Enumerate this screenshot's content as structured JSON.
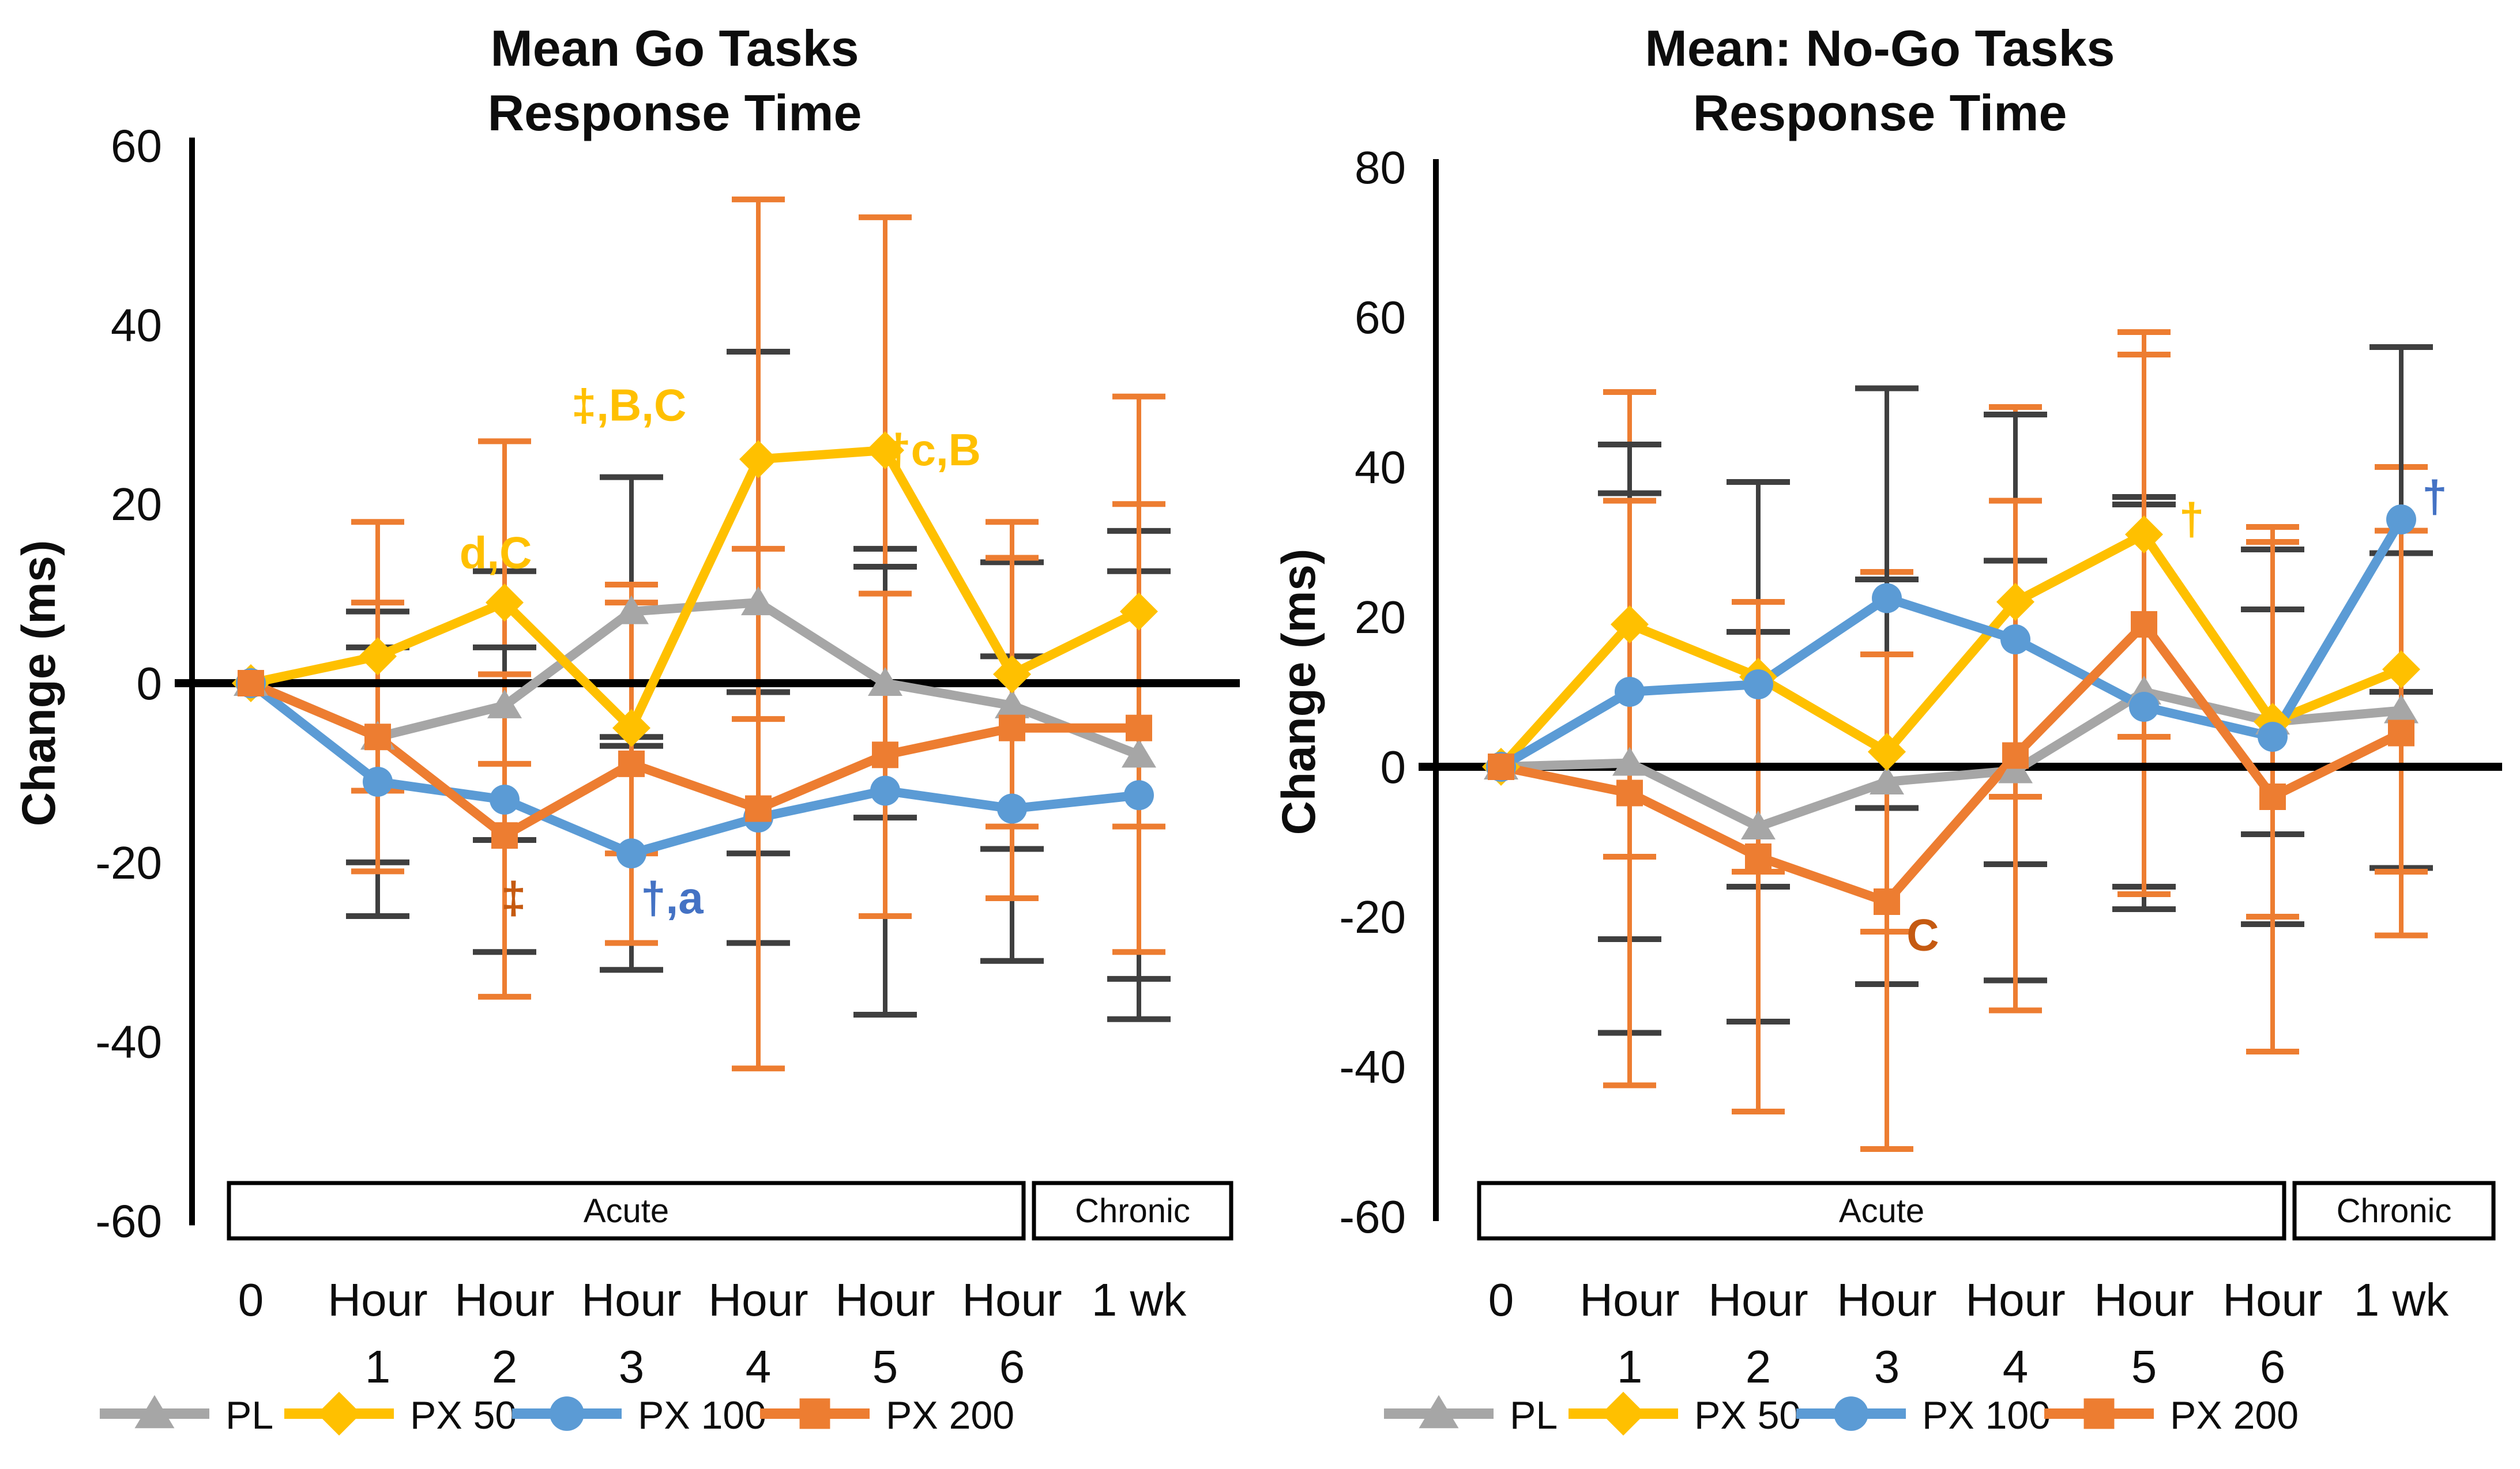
{
  "figure": {
    "left_title_line1": "Mean Go Tasks",
    "left_title_line2": "Response Time",
    "right_title_line1": "Mean: No-Go Tasks",
    "right_title_line2": "Response Time"
  },
  "chart_data": [
    {
      "type": "line",
      "title": "Mean Go Tasks Response Time",
      "title_lines": [
        "Mean Go Tasks",
        "Response Time"
      ],
      "ylabel": "Change (ms)",
      "ylim": [
        -60,
        60
      ],
      "ytick_step": 20,
      "grid": false,
      "legend_position": "bottom",
      "categories_line1": [
        "0",
        "Hour",
        "Hour",
        "Hour",
        "Hour",
        "Hour",
        "Hour",
        "1 wk"
      ],
      "categories_line2": [
        "",
        "1",
        "2",
        "3",
        "4",
        "5",
        "6",
        ""
      ],
      "series": [
        {
          "name": "PL",
          "marker": "triangle",
          "color": "#A6A6A6",
          "error_color": "#3F3F3F",
          "values": [
            0,
            -6,
            -2.5,
            8,
            9,
            0,
            -2.5,
            -8
          ],
          "errors": [
            0,
            14,
            15,
            15,
            28,
            15,
            16,
            25
          ]
        },
        {
          "name": "PX 50",
          "marker": "diamond",
          "color": "#FFC000",
          "error_color": "#ED7D31",
          "values": [
            0,
            3,
            9,
            -5,
            25,
            26,
            1,
            8
          ],
          "errors": [
            0,
            15,
            18,
            14,
            29,
            26,
            17,
            24
          ]
        },
        {
          "name": "PX 100",
          "marker": "circle",
          "color": "#5B9BD5",
          "error_color": "#3F3F3F",
          "values": [
            0,
            -11,
            -13,
            -19,
            -15,
            -12,
            -14,
            -12.5
          ],
          "errors": [
            0,
            15,
            17,
            13,
            14,
            25,
            17,
            25
          ]
        },
        {
          "name": "PX 200",
          "marker": "square",
          "color": "#ED7D31",
          "error_color": "#ED7D31",
          "values": [
            0,
            -6,
            -17,
            -9,
            -14,
            -8,
            -5,
            -5
          ],
          "errors": [
            0,
            15,
            18,
            20,
            29,
            18,
            19,
            25
          ]
        }
      ],
      "annotations": [
        {
          "text": "d,C",
          "color": "#FFC000",
          "cat": 1.93,
          "value": 14.5
        },
        {
          "text": "‡,B,C",
          "color": "#FFC000",
          "cat": 2.98,
          "value": 31
        },
        {
          "text": "†c,B",
          "color": "#FFC000",
          "cat": 5.38,
          "value": 26
        },
        {
          "text": "‡",
          "color": "#C55A11",
          "cat": 2.07,
          "value": -24
        },
        {
          "text": "†,a",
          "color": "#4472C4",
          "cat": 3.32,
          "value": -24
        }
      ],
      "phase_labels": [
        "Acute",
        "Chronic"
      ],
      "legend": [
        "PL",
        "PX 50",
        "PX 100",
        "PX 200"
      ]
    },
    {
      "type": "line",
      "title": "Mean: No-Go Tasks Response Time",
      "title_lines": [
        "Mean: No-Go Tasks",
        "Response Time"
      ],
      "ylabel": "Change (ms)",
      "ylim": [
        -60,
        80
      ],
      "ytick_step": 20,
      "grid": false,
      "legend_position": "bottom",
      "categories_line1": [
        "0",
        "Hour",
        "Hour",
        "Hour",
        "Hour",
        "Hour",
        "Hour",
        "1 wk"
      ],
      "categories_line2": [
        "",
        "1",
        "2",
        "3",
        "4",
        "5",
        "6",
        ""
      ],
      "series": [
        {
          "name": "PL",
          "marker": "triangle",
          "color": "#A6A6A6",
          "error_color": "#3F3F3F",
          "values": [
            0,
            0.5,
            -8,
            -2,
            -0.5,
            10,
            6,
            7.5
          ],
          "errors": [
            0,
            36,
            26,
            27,
            28,
            26,
            15,
            21
          ]
        },
        {
          "name": "PX 50",
          "marker": "diamond",
          "color": "#FFC000",
          "error_color": "#ED7D31",
          "values": [
            0,
            19,
            12,
            2,
            22,
            31,
            6,
            13
          ],
          "errors": [
            0,
            31,
            26,
            24,
            26,
            27,
            26,
            27
          ]
        },
        {
          "name": "PX 100",
          "marker": "circle",
          "color": "#5B9BD5",
          "error_color": "#3F3F3F",
          "values": [
            0,
            10,
            11,
            22.5,
            17,
            8,
            4,
            33
          ],
          "errors": [
            0,
            33,
            27,
            28,
            30,
            27,
            25,
            23
          ]
        },
        {
          "name": "PX 200",
          "marker": "square",
          "color": "#ED7D31",
          "error_color": "#ED7D31",
          "values": [
            0,
            -3.5,
            -12,
            -18,
            1.5,
            19,
            -4,
            4.5
          ],
          "errors": [
            0,
            39,
            34,
            33,
            34,
            36,
            34,
            27
          ]
        }
      ],
      "annotations": [
        {
          "text": "†",
          "color": "#FFC000",
          "cat": 5.37,
          "value": 33
        },
        {
          "text": "C",
          "color": "#C55A11",
          "cat": 3.28,
          "value": -22.5
        },
        {
          "text": "†",
          "color": "#4472C4",
          "cat": 7.26,
          "value": 36
        }
      ],
      "phase_labels": [
        "Acute",
        "Chronic"
      ],
      "legend": [
        "PL",
        "PX 50",
        "PX 100",
        "PX 200"
      ]
    }
  ]
}
